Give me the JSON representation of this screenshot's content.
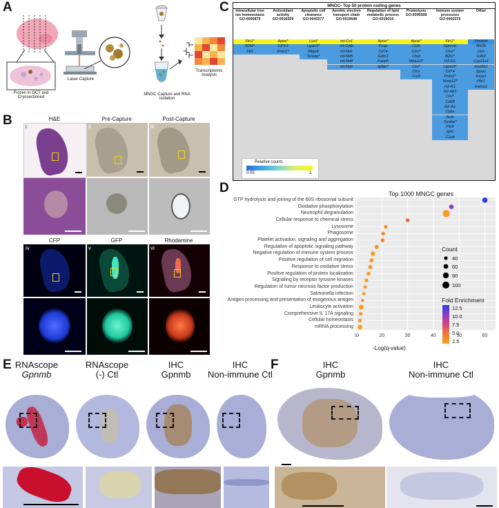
{
  "panel_labels": {
    "a": "A",
    "b": "B",
    "c": "C",
    "d": "D",
    "e": "E",
    "f": "F"
  },
  "panel_a": {
    "frozen_label": "Frozen in OCT and Cryosectioned",
    "laser_label": "Laser Capture",
    "mngc_label": "MNGC Capture and RNA isolation",
    "transcriptomic_label": "Transcriptomic Analysis"
  },
  "panel_b": {
    "top_titles": [
      "H&E",
      "Pre-Capture",
      "Post-Capture"
    ],
    "bottom_titles": [
      "CFP",
      "GFP",
      "Rhodamine"
    ],
    "roman_top": [
      "i",
      "ii",
      "iii"
    ],
    "roman_bottom": [
      "iv",
      "v",
      "vi"
    ]
  },
  "panel_c": {
    "title": "MNGC- Top 50 protein coding genes",
    "columns": [
      {
        "header": "Intracellular iron ion homeostasis GO:0006879",
        "genes": [
          "Fth1*",
          "B2M*",
          "Flt1"
        ]
      },
      {
        "header": "Antioxidant activity GO:0016209",
        "genes": [
          "Apoe*",
          "GPX3",
          "Prdx1*"
        ]
      },
      {
        "header": "Apoptotic cell clearance GO:0043277",
        "genes": [
          "Lyz2",
          "Lgals3*",
          "Mfge8",
          "Tyrobp*"
        ]
      },
      {
        "header": "Aerobic electron transport chain GO:0019646",
        "genes": [
          "mt-Co1",
          "mt-Cytb",
          "mt-Nd1",
          "mt-Nd5",
          "mt-Nd4",
          "mt-Nd2"
        ]
      },
      {
        "header": "Regulation of lipid metabolic process GO:0019216",
        "genes": [
          "Apoe*",
          "Psap",
          "Cd74",
          "Gdm1",
          "Fabp5",
          "Igfbp7"
        ]
      },
      {
        "header": "Proteolysis GO:0006508",
        "genes": [
          "Apoe*",
          "Ctsb",
          "Ctss*",
          "Ctsd",
          "Mmp12*",
          "Ctsl*",
          "Ctsz",
          "Cst3"
        ]
      },
      {
        "header": "Immune system processes GO:0002376",
        "genes": [
          "Fth1*",
          "Gpnmb",
          "Ctss*",
          "B2m*",
          "H2-D1",
          "Lgals3*",
          "Cd74",
          "Prdx1*",
          "Mmp12*",
          "H2-K1",
          "H2-Ab1",
          "Ctsl*",
          "Cd68",
          "H2-Aa",
          "Cyba",
          "Actb",
          "Tyrobp*",
          "Pkl3",
          "Igkc",
          "C1qb"
        ]
      },
      {
        "header": "Other",
        "genes": [
          "Tmsb4x",
          "Ifm2b",
          "Dcn",
          "Cd63",
          "Cyp11a1",
          "Hsd3b1",
          "Sparc",
          "Rsrp1",
          "Pfn1",
          "Eef1a1"
        ]
      }
    ],
    "legend_title": "Relative counts",
    "legend_min": "0.05",
    "legend_max": "1"
  },
  "chart_data": {
    "type": "scatter",
    "title": "Top 1000 MNGC genes",
    "xlabel": "-Log(q-value)",
    "ylabel": "",
    "xlim": [
      10,
      62
    ],
    "xticks": [
      10,
      20,
      30,
      40,
      50,
      60
    ],
    "categories": [
      "GTP hydrolysis and joining of the 60S ribosomal subunit",
      "Oxidative phosphorylation",
      "Neutrophil degranulation",
      "Cellular response to chemical stress",
      "Lysosome",
      "Phagosome",
      "Platelet activation, signaling and aggregation",
      "Regulation of apoptotic signaling pathway",
      "Negative regulation of immune system process",
      "Positive regulation of cell migration",
      "Response to oxidative stress",
      "Positive regulation of protein localization",
      "Signaling by receptor tyrosine kinases",
      "Regulation of tumor necrosis factor production",
      "Salmonella infection",
      "Antigen processing and presentation of exogenous antigen",
      "Leukocyte activation",
      "Comprehensive IL 17A signaling",
      "Cellular homeostasis",
      "mRNA processing"
    ],
    "x": [
      60,
      47,
      45,
      30,
      21.5,
      20.5,
      20.3,
      18,
      16.5,
      16,
      15.5,
      14.8,
      14,
      13.5,
      13,
      12.5,
      12,
      11.8,
      11.5,
      11.5
    ],
    "count": [
      70,
      55,
      110,
      40,
      32,
      35,
      38,
      45,
      50,
      48,
      45,
      42,
      38,
      30,
      28,
      20,
      60,
      35,
      40,
      58
    ],
    "fold_enrichment": [
      13,
      10.5,
      3,
      6,
      4,
      4.5,
      4.5,
      3.5,
      3,
      3,
      3.2,
      3,
      2.8,
      3,
      3,
      4,
      2.4,
      3,
      2.8,
      2.4
    ],
    "legend_count_title": "Count",
    "legend_count_values": [
      "40",
      "60",
      "80",
      "100"
    ],
    "legend_fold_title": "Fold Enrichment",
    "legend_fold_values": [
      "12.5",
      "10.0",
      "7.5",
      "5.0",
      "2.5"
    ]
  },
  "panel_e": {
    "labels": [
      {
        "line1": "RNAscope",
        "line2": "Gpnmb",
        "italic2": true
      },
      {
        "line1": "RNAscope",
        "line2": "(-) Ctl",
        "italic2": false
      },
      {
        "line1": "IHC",
        "line2": "Gpnmb",
        "italic2": false
      },
      {
        "line1": "IHC",
        "line2": "Non-immune Ctl",
        "italic2": false
      }
    ]
  },
  "panel_f": {
    "labels": [
      {
        "line1": "IHC",
        "line2": "Gpnmb"
      },
      {
        "line1": "IHC",
        "line2": "Non-immune Ctl"
      }
    ]
  },
  "colors": {
    "he_purple": "#7a3f8e",
    "brightfield": "#c9bfae",
    "cfp": "#1e3bd6",
    "gfp": "#21c9a0",
    "rhodamine": "#c83a1c",
    "rnascope_red": "#c8102e",
    "ihc_brown": "#a6793f",
    "hematoxylin": "#9aa3cf",
    "fold_high": "#2c3de8",
    "fold_low": "#f7a21e"
  }
}
